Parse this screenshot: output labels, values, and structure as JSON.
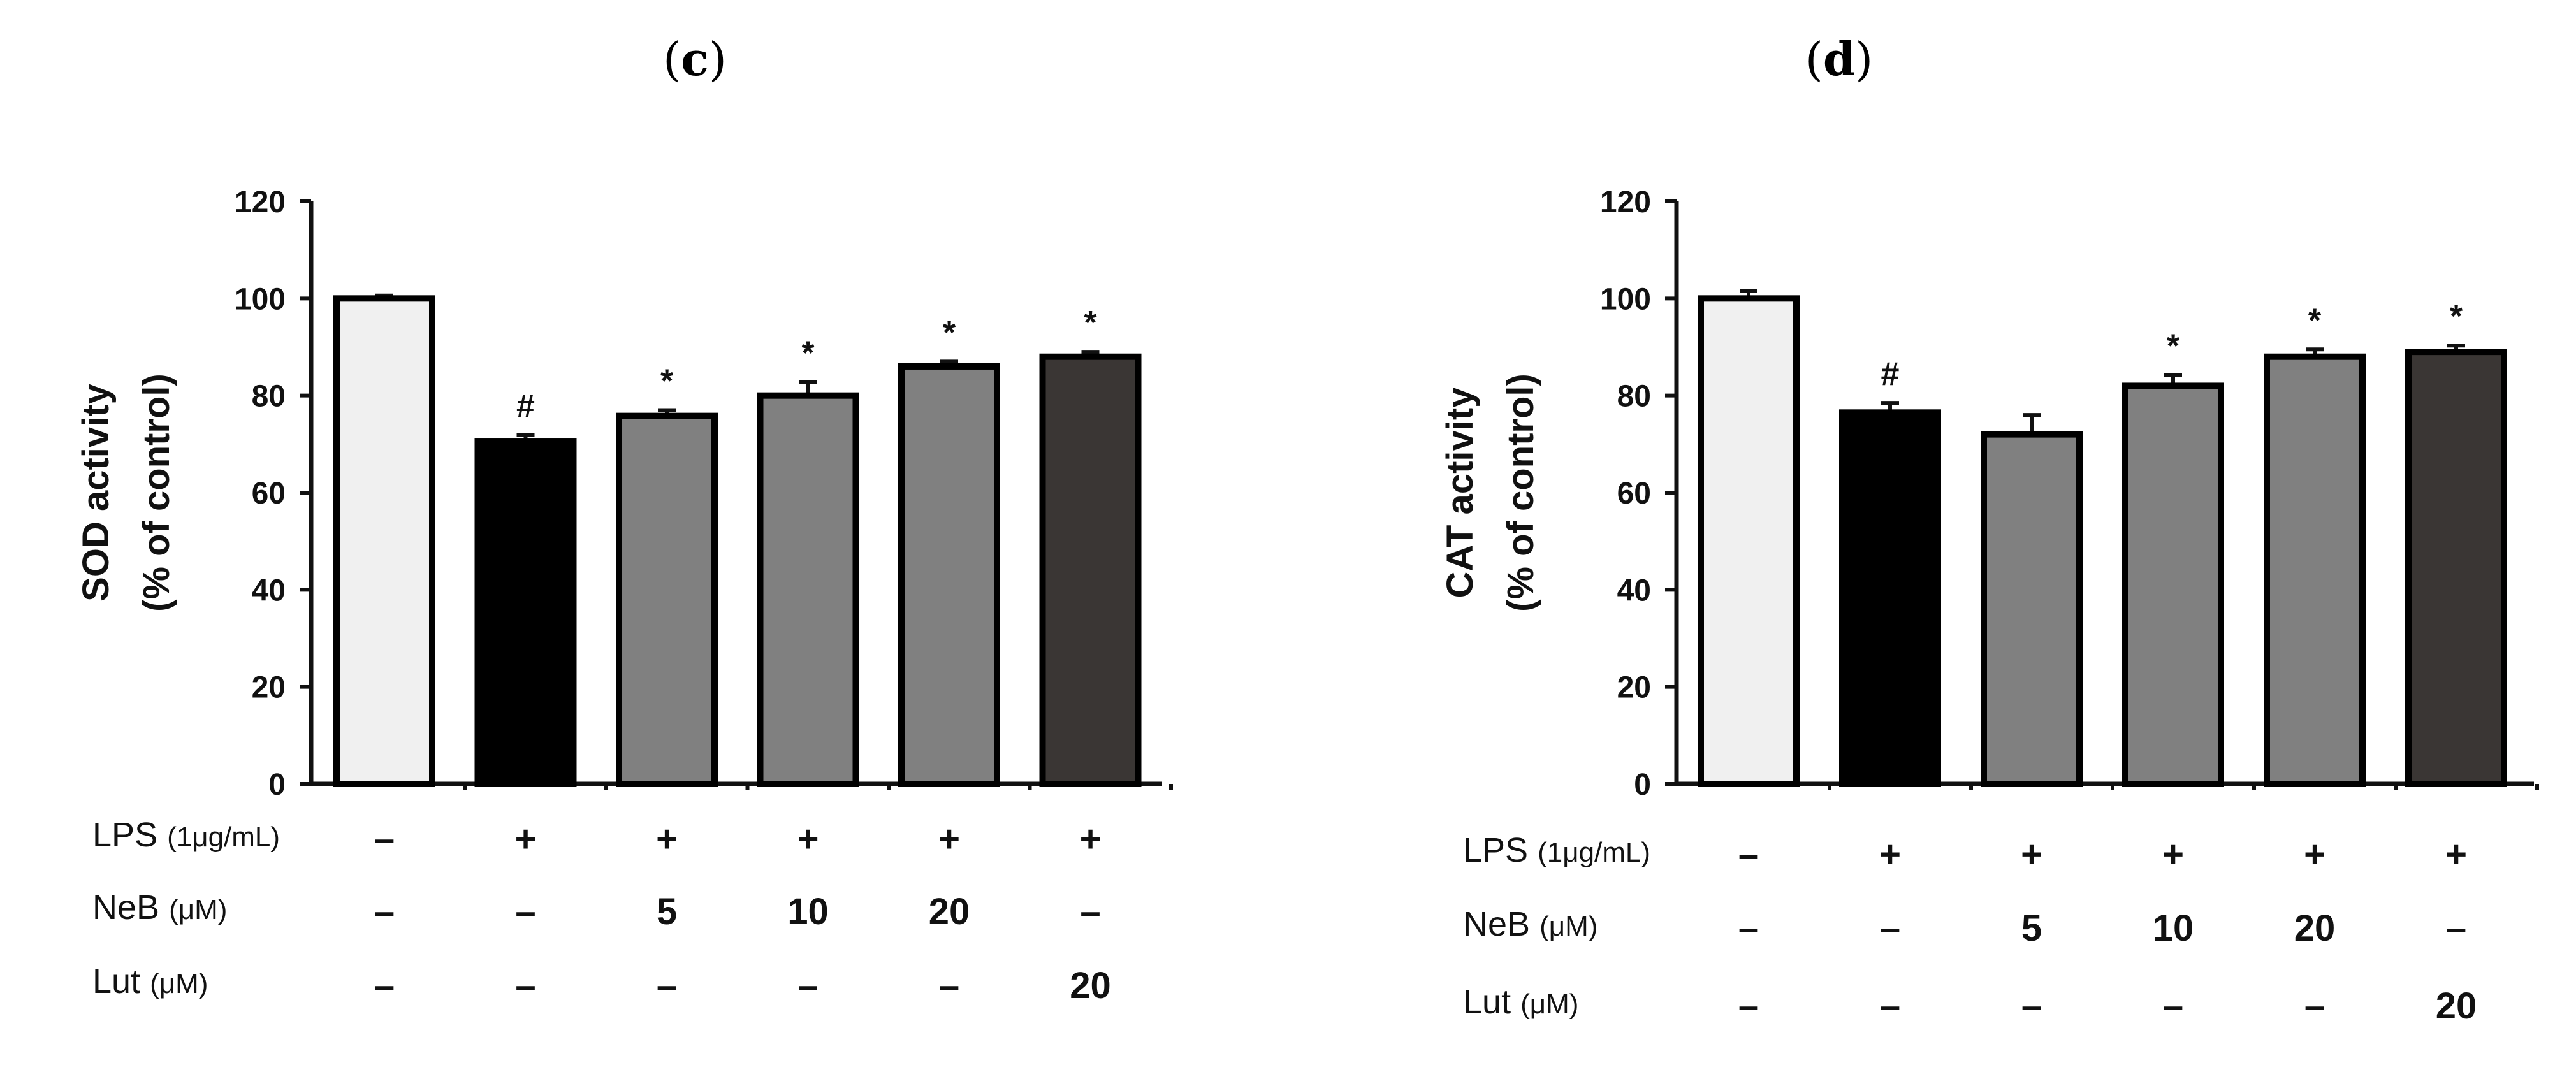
{
  "chart_data": [
    {
      "type": "bar",
      "panel_label": "c",
      "title": "",
      "xlabel": "",
      "ylabel_line1": "SOD activity",
      "ylabel_line2": "(% of control)",
      "ylim": [
        0,
        120
      ],
      "yticks": [
        "0",
        "20",
        "40",
        "60",
        "80",
        "100",
        "120"
      ],
      "categories": [
        "Control",
        "LPS",
        "LPS + NeB 5",
        "LPS + NeB 10",
        "LPS + NeB 20",
        "LPS + Lut 20"
      ],
      "values": [
        100,
        70.5,
        75.8,
        80,
        86,
        88
      ],
      "errors": [
        0.6,
        1.4,
        1.2,
        2.8,
        1.0,
        1.0
      ],
      "bar_colors": [
        "#f0f0f0",
        "#000000",
        "#808080",
        "#808080",
        "#808080",
        "#3a3634"
      ],
      "annotations": [
        "",
        "#",
        "*",
        "*",
        "*",
        "*"
      ],
      "condition_rows": [
        {
          "label": "LPS",
          "unit": "(1μg/mL)",
          "values": [
            "–",
            "+",
            "+",
            "+",
            "+",
            "+"
          ]
        },
        {
          "label": "NeB",
          "unit": "(μM)",
          "values": [
            "–",
            "–",
            "5",
            "10",
            "20",
            "–"
          ]
        },
        {
          "label": "Lut",
          "unit": "(μM)",
          "values": [
            "–",
            "–",
            "–",
            "–",
            "–",
            "20"
          ]
        }
      ]
    },
    {
      "type": "bar",
      "panel_label": "d",
      "title": "",
      "xlabel": "",
      "ylabel_line1": "CAT activity",
      "ylabel_line2": "(% of control)",
      "ylim": [
        0,
        120
      ],
      "yticks": [
        "0",
        "20",
        "40",
        "60",
        "80",
        "100",
        "120"
      ],
      "categories": [
        "Control",
        "LPS",
        "LPS + NeB 5",
        "LPS + NeB 10",
        "LPS + NeB 20",
        "LPS + Lut 20"
      ],
      "values": [
        100,
        76.5,
        72,
        82,
        88,
        89
      ],
      "errors": [
        1.5,
        2.0,
        4.0,
        2.2,
        1.5,
        1.3
      ],
      "bar_colors": [
        "#f0f0f0",
        "#000000",
        "#808080",
        "#808080",
        "#808080",
        "#3a3634"
      ],
      "annotations": [
        "",
        "#",
        "",
        "*",
        "*",
        "*"
      ],
      "condition_rows": [
        {
          "label": "LPS",
          "unit": "(1μg/mL)",
          "values": [
            "–",
            "+",
            "+",
            "+",
            "+",
            "+"
          ]
        },
        {
          "label": "NeB",
          "unit": "(μM)",
          "values": [
            "–",
            "–",
            "5",
            "10",
            "20",
            "–"
          ]
        },
        {
          "label": "Lut",
          "unit": "(μM)",
          "values": [
            "–",
            "–",
            "–",
            "–",
            "–",
            "20"
          ]
        }
      ]
    }
  ]
}
